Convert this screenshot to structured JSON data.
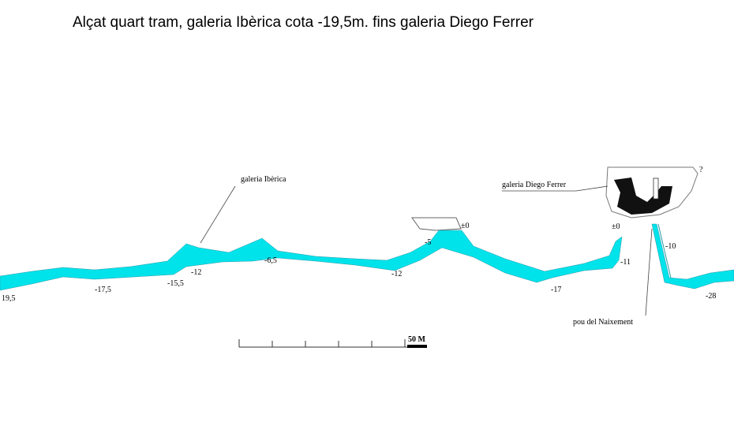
{
  "title": "Alçat quart tram, galeria Ibèrica cota -19,5m. fins galeria Diego Ferrer",
  "labels": {
    "iberica": "galeria Ibèrica",
    "ferrer": "galeria Diego Ferrer",
    "pou": "pou del Naixement",
    "question": "?"
  },
  "depths": [
    "19,5",
    "-17,5",
    "-15,5",
    "-12",
    "-6,5",
    "-12",
    "-5",
    "±0",
    "-17",
    "-11",
    "±0",
    "-10",
    "-28"
  ],
  "scale": {
    "label": "50 M"
  }
}
